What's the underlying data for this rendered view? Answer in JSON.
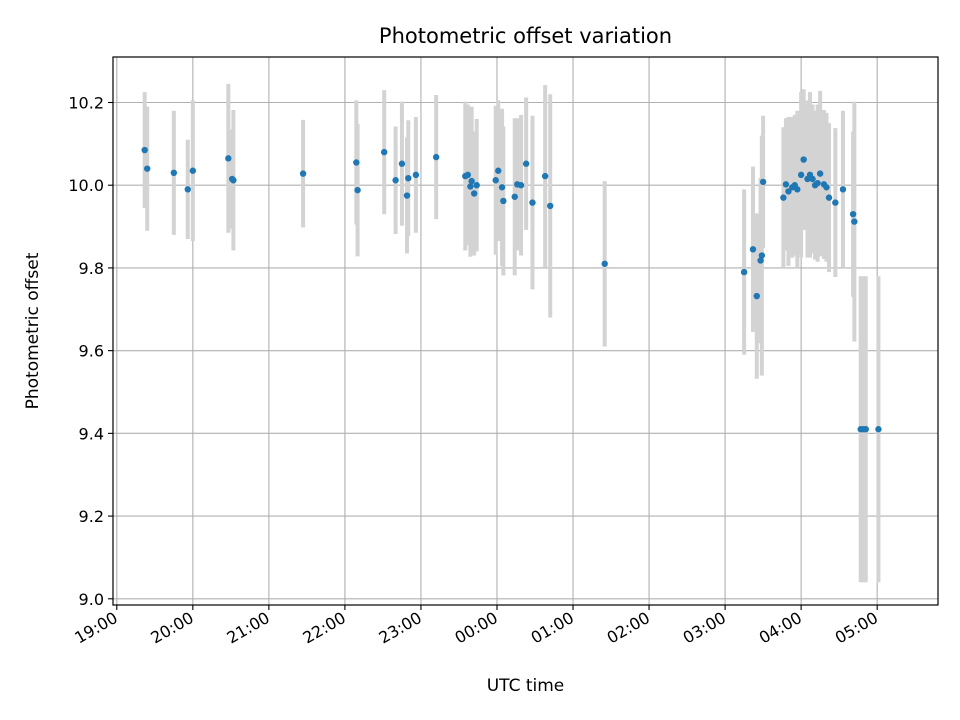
{
  "chart_data": {
    "type": "scatter",
    "title": "Photometric offset variation",
    "xlabel": "UTC time",
    "ylabel": "Photometric offset",
    "xlim": [
      "18:57",
      "05:48"
    ],
    "ylim": [
      8.985,
      10.31
    ],
    "grid": true,
    "x_ticks": [
      "19:00",
      "20:00",
      "21:00",
      "22:00",
      "23:00",
      "00:00",
      "01:00",
      "02:00",
      "03:00",
      "04:00",
      "05:00"
    ],
    "y_ticks": [
      "9.0",
      "9.2",
      "9.4",
      "9.6",
      "9.8",
      "10.0",
      "10.2"
    ],
    "colors": {
      "point": "#1f77b4",
      "errorbar": "#d3d3d3",
      "grid": "#b0b0b0",
      "axes": "#000000"
    },
    "series": [
      {
        "x": [
          "19:22",
          "19:24",
          "19:45",
          "19:56",
          "20:00",
          "20:28",
          "20:31",
          "20:32",
          "21:27",
          "22:09",
          "22:10",
          "22:31",
          "22:40",
          "22:45",
          "22:49",
          "22:50",
          "22:56",
          "23:12",
          "23:35",
          "23:37",
          "23:39",
          "23:40",
          "23:42",
          "23:44",
          "23:59",
          "24:01",
          "24:04",
          "24:05",
          "24:14",
          "24:16",
          "24:19",
          "24:23",
          "24:28",
          "24:38",
          "24:42",
          "25:25",
          "27:15",
          "27:22",
          "27:25",
          "27:28",
          "27:29",
          "27:30",
          "27:46",
          "27:48",
          "27:50",
          "27:53",
          "27:55",
          "27:57",
          "28:00",
          "28:02",
          "28:05",
          "28:07",
          "28:09",
          "28:11",
          "28:13",
          "28:15",
          "28:18",
          "28:20",
          "28:22",
          "28:27",
          "28:33",
          "28:41",
          "28:42",
          "28:47",
          "28:49",
          "28:51",
          "29:01"
        ],
        "y": [
          10.085,
          10.04,
          10.03,
          9.99,
          10.035,
          10.065,
          10.015,
          10.012,
          10.028,
          10.055,
          9.988,
          10.08,
          10.012,
          10.052,
          9.975,
          10.017,
          10.025,
          10.068,
          10.022,
          10.025,
          9.997,
          10.01,
          9.98,
          10.0,
          10.012,
          10.035,
          9.995,
          9.962,
          9.972,
          10.002,
          10.0,
          10.052,
          9.958,
          10.022,
          9.95,
          9.81,
          9.79,
          9.845,
          9.732,
          9.818,
          9.83,
          10.008,
          9.97,
          10.002,
          9.985,
          9.995,
          10.0,
          9.99,
          10.025,
          10.062,
          10.015,
          10.025,
          10.015,
          10.0,
          10.005,
          10.028,
          10.002,
          9.995,
          9.97,
          9.958,
          9.99,
          9.93,
          9.912,
          9.41,
          9.41,
          9.41,
          9.41
        ],
        "yerr": [
          0.14,
          0.15,
          0.15,
          0.12,
          0.17,
          0.18,
          0.12,
          0.17,
          0.13,
          0.15,
          0.16,
          0.15,
          0.13,
          0.15,
          0.14,
          0.14,
          0.14,
          0.15,
          0.18,
          0.17,
          0.17,
          0.18,
          0.15,
          0.16,
          0.18,
          0.17,
          0.19,
          0.18,
          0.19,
          0.16,
          0.17,
          0.16,
          0.21,
          0.22,
          0.27,
          0.2,
          0.2,
          0.2,
          0.2,
          0.2,
          0.29,
          0.16,
          0.17,
          0.16,
          0.18,
          0.17,
          0.17,
          0.19,
          0.2,
          0.17,
          0.19,
          0.2,
          0.18,
          0.18,
          0.19,
          0.2,
          0.18,
          0.18,
          0.18,
          0.18,
          0.19,
          0.2,
          0.29,
          0.37,
          0.37,
          0.37,
          0.37
        ]
      }
    ]
  }
}
